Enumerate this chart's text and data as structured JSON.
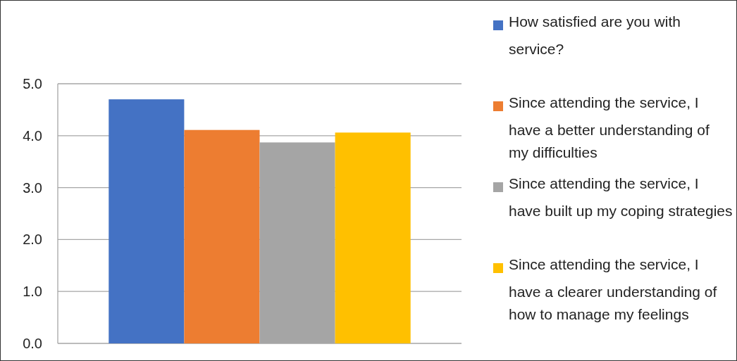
{
  "chart_data": {
    "type": "bar",
    "categories": [
      null
    ],
    "series": [
      {
        "name": "How satisfied are you with service?",
        "color": "#4472c4",
        "values": [
          4.7
        ]
      },
      {
        "name": "Since attending the service, I have a better understanding of my difficulties",
        "color": "#ed7d31",
        "values": [
          4.11
        ]
      },
      {
        "name": "Since attending the service, I have built up my coping strategies",
        "color": "#a5a5a5",
        "values": [
          3.87
        ]
      },
      {
        "name": "Since attending the service, I have a clearer understanding of how to manage my feelings",
        "color": "#ffc000",
        "values": [
          4.06
        ]
      }
    ],
    "ylim": [
      0,
      5
    ],
    "yticks": [
      {
        "value": 0,
        "label": "0.0"
      },
      {
        "value": 1,
        "label": "1.0"
      },
      {
        "value": 2,
        "label": "2.0"
      },
      {
        "value": 3,
        "label": "3.0"
      },
      {
        "value": 4,
        "label": "4.0"
      },
      {
        "value": 5,
        "label": "5.0"
      }
    ],
    "grid": "y",
    "legend": "right"
  }
}
